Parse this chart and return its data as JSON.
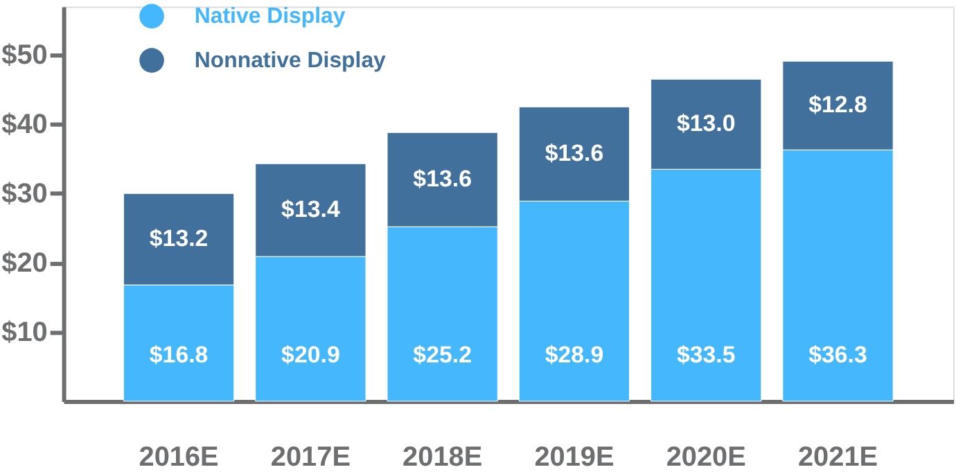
{
  "chart_data": {
    "type": "bar",
    "stacked": true,
    "categories": [
      "2016E",
      "2017E",
      "2018E",
      "2019E",
      "2020E",
      "2021E"
    ],
    "series": [
      {
        "name": "Native Display",
        "color": "#45b8fd",
        "values": [
          16.8,
          20.9,
          25.2,
          28.9,
          33.5,
          36.3
        ],
        "value_labels": [
          "$16.8",
          "$20.9",
          "$25.2",
          "$28.9",
          "$33.5",
          "$36.3"
        ]
      },
      {
        "name": "Nonnative Display",
        "color": "#41709c",
        "values": [
          13.2,
          13.4,
          13.6,
          13.6,
          13.0,
          12.8
        ],
        "value_labels": [
          "$13.2",
          "$13.4",
          "$13.6",
          "$13.6",
          "$13.0",
          "$12.8"
        ]
      }
    ],
    "ylim": [
      0,
      57
    ],
    "yticks": [
      {
        "value": 10,
        "label": "$10"
      },
      {
        "value": 20,
        "label": "$20"
      },
      {
        "value": 30,
        "label": "$30"
      },
      {
        "value": 40,
        "label": "$40"
      },
      {
        "value": 50,
        "label": "$50"
      }
    ],
    "grid": false,
    "legend": "top left"
  }
}
